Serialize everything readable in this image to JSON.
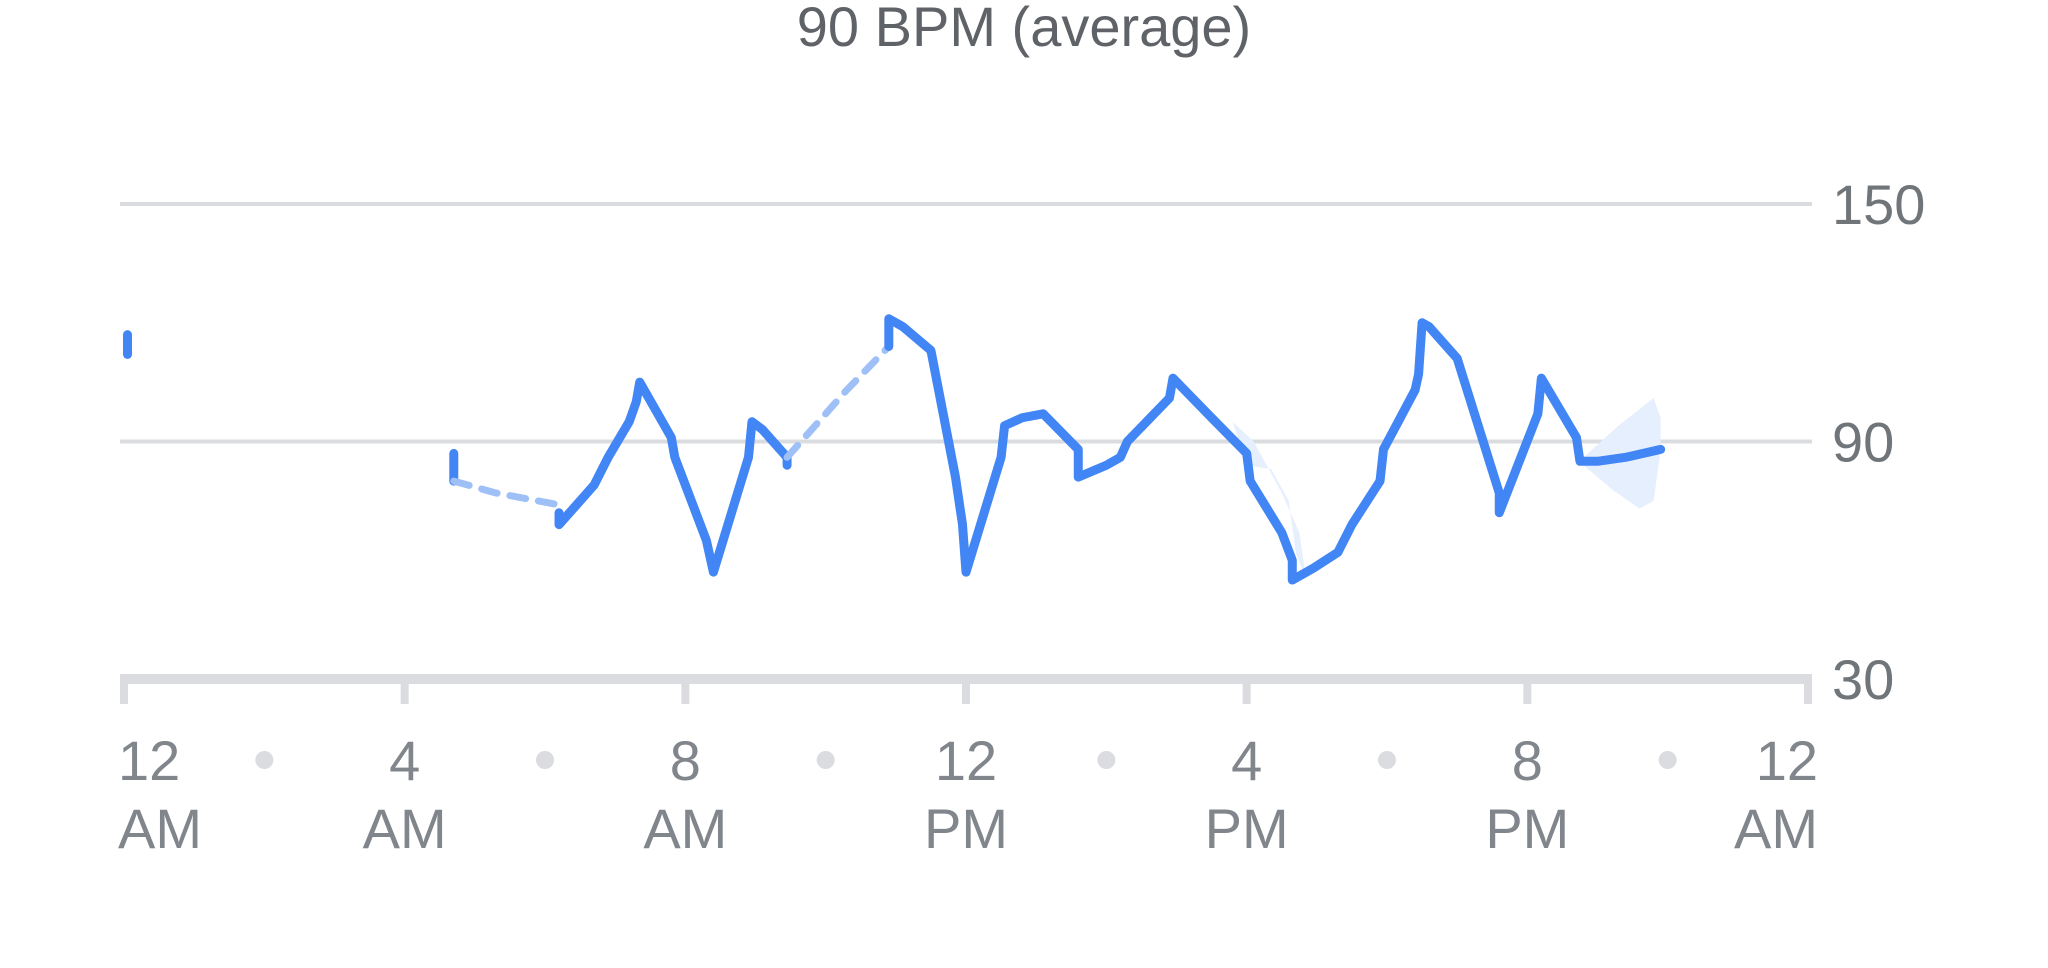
{
  "chart_data": {
    "type": "line",
    "title": "90 BPM (average)",
    "xlabel": "",
    "ylabel": "",
    "xlim": [
      0,
      24
    ],
    "ylim": [
      30,
      150
    ],
    "y_ticks": [
      {
        "value": 150,
        "label": "150"
      },
      {
        "value": 90,
        "label": "90"
      },
      {
        "value": 30,
        "label": "30"
      }
    ],
    "x_ticks": [
      {
        "value": 0,
        "line1": "12",
        "line2": "AM"
      },
      {
        "value": 4,
        "line1": "4",
        "line2": "AM"
      },
      {
        "value": 8,
        "line1": "8",
        "line2": "AM"
      },
      {
        "value": 12,
        "line1": "12",
        "line2": "PM"
      },
      {
        "value": 16,
        "line1": "4",
        "line2": "PM"
      },
      {
        "value": 20,
        "line1": "8",
        "line2": "PM"
      },
      {
        "value": 24,
        "line1": "12",
        "line2": "AM"
      }
    ],
    "x_minor_dots": [
      2,
      6,
      10,
      14,
      18,
      22
    ],
    "gridlines_y": [
      150,
      90
    ],
    "grid": true,
    "legend": "none",
    "colors": {
      "line": "#4285f4",
      "gap": "#9fc0f7",
      "band": "#e6effd",
      "grid": "#dadce0",
      "axis": "#dadce0",
      "dot": "#dadce0"
    },
    "series": [
      {
        "style": "solid",
        "points": [
          [
            0.05,
            117
          ],
          [
            0.05,
            112
          ]
        ]
      },
      {
        "style": "solid",
        "points": [
          [
            4.7,
            87
          ],
          [
            4.7,
            80
          ]
        ]
      },
      {
        "style": "dashed",
        "points": [
          [
            4.7,
            80
          ],
          [
            5.3,
            77
          ],
          [
            6.2,
            74
          ]
        ]
      },
      {
        "style": "solid",
        "points": [
          [
            6.2,
            72
          ],
          [
            6.2,
            69
          ],
          [
            6.7,
            79
          ],
          [
            6.9,
            86
          ],
          [
            7.2,
            95
          ],
          [
            7.3,
            100
          ],
          [
            7.35,
            105
          ],
          [
            7.8,
            91
          ],
          [
            7.85,
            86
          ],
          [
            8.3,
            65
          ],
          [
            8.4,
            57
          ],
          [
            8.9,
            86
          ],
          [
            8.95,
            95
          ],
          [
            9.1,
            93
          ],
          [
            9.45,
            86
          ],
          [
            9.45,
            84
          ]
        ]
      },
      {
        "style": "dashed",
        "points": [
          [
            9.45,
            86
          ],
          [
            10.3,
            103
          ],
          [
            10.9,
            114
          ]
        ]
      },
      {
        "style": "solid",
        "points": [
          [
            10.9,
            114
          ],
          [
            10.9,
            121
          ],
          [
            11.1,
            119
          ],
          [
            11.5,
            113
          ],
          [
            11.85,
            81
          ],
          [
            11.95,
            69
          ],
          [
            12.0,
            57
          ],
          [
            12.5,
            86
          ],
          [
            12.55,
            94
          ],
          [
            12.8,
            96
          ],
          [
            13.1,
            97
          ],
          [
            13.6,
            88
          ],
          [
            13.6,
            81
          ],
          [
            14.0,
            84
          ],
          [
            14.2,
            86
          ],
          [
            14.3,
            90
          ],
          [
            14.9,
            101
          ],
          [
            14.95,
            106
          ],
          [
            15.5,
            96
          ],
          [
            16.0,
            87
          ],
          [
            16.05,
            80
          ],
          [
            16.5,
            67
          ],
          [
            16.65,
            60
          ],
          [
            16.65,
            55
          ],
          [
            16.95,
            58
          ],
          [
            17.3,
            62
          ],
          [
            17.5,
            69
          ],
          [
            17.9,
            80
          ],
          [
            17.95,
            88
          ],
          [
            18.4,
            103
          ],
          [
            18.45,
            107
          ],
          [
            18.5,
            120
          ],
          [
            18.6,
            119
          ],
          [
            19.0,
            111
          ],
          [
            19.6,
            77
          ],
          [
            19.6,
            72
          ],
          [
            20.15,
            97
          ],
          [
            20.2,
            106
          ],
          [
            20.7,
            91
          ],
          [
            20.75,
            85
          ],
          [
            21.0,
            85
          ],
          [
            21.4,
            86
          ],
          [
            21.9,
            88
          ]
        ]
      }
    ],
    "band": [
      [
        16.0,
        84
      ],
      [
        16.35,
        83
      ],
      [
        16.6,
        75
      ],
      [
        16.7,
        62
      ],
      [
        16.85,
        55
      ],
      [
        16.75,
        67
      ],
      [
        16.5,
        77
      ],
      [
        16.1,
        90
      ],
      [
        15.8,
        95
      ],
      [
        16.0,
        84
      ]
    ],
    "band_end": [
      [
        20.8,
        86
      ],
      [
        21.3,
        94
      ],
      [
        21.8,
        101
      ],
      [
        21.9,
        96
      ],
      [
        21.9,
        88
      ],
      [
        21.8,
        75
      ],
      [
        21.6,
        73
      ],
      [
        21.2,
        78
      ],
      [
        20.8,
        84
      ]
    ]
  }
}
